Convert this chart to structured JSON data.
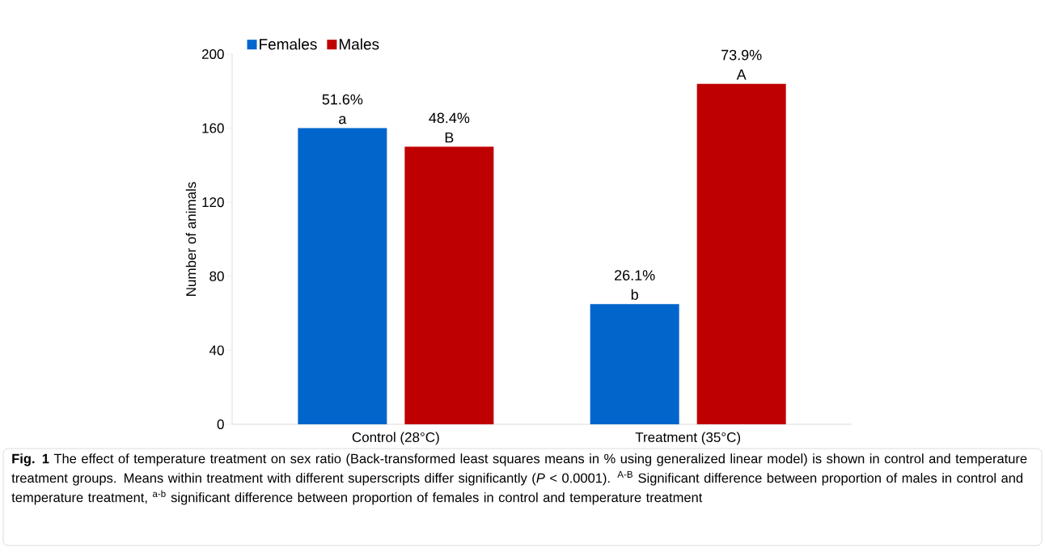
{
  "chart_data": {
    "type": "bar",
    "ylabel": "Number of animals",
    "categories": [
      "Control (28°C)",
      "Treatment (35°C)"
    ],
    "series": [
      {
        "name": "Females",
        "color": "#0066cc",
        "values": [
          160,
          65
        ]
      },
      {
        "name": "Males",
        "color": "#bf0000",
        "values": [
          150,
          184
        ]
      }
    ],
    "ylim": [
      0,
      200
    ],
    "yticks": [
      0,
      40,
      80,
      120,
      160,
      200
    ],
    "legend": "top left",
    "annotations": [
      "51.6%",
      "a",
      "26.1%",
      "b",
      "48.4%",
      "B",
      "73.9%",
      "A",
      "**Fig. 1** The effect of temperature treatment on sex ratio (Back-transformed least squares means in % using generalized linear model) is shown in control and temperature treatment groups. Means within treatment with different superscripts differ significantly (*P* < 0.0001). $^{A-B}$ Significant difference between proportion of males in control and temperature treatment, $^{a-b}$ significant difference between proportion of females in control and temperature treatment"
    ]
  }
}
